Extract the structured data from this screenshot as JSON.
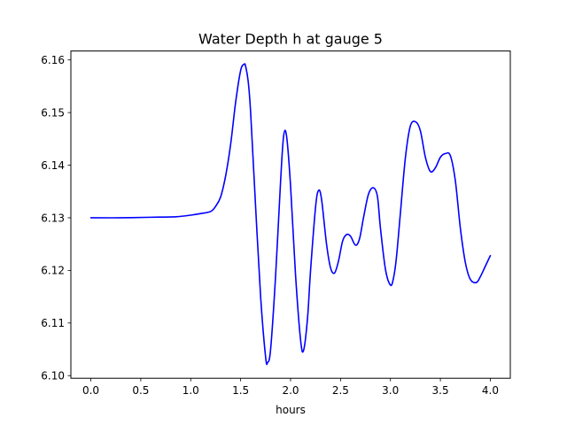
{
  "chart_data": {
    "type": "line",
    "title": "Water Depth h at gauge 5",
    "xlabel": "hours",
    "ylabel": "",
    "xlim": [
      -0.2,
      4.2
    ],
    "ylim": [
      6.0995,
      6.1617
    ],
    "xticks": [
      0.0,
      0.5,
      1.0,
      1.5,
      2.0,
      2.5,
      3.0,
      3.5,
      4.0
    ],
    "xtick_labels": [
      "0.0",
      "0.5",
      "1.0",
      "1.5",
      "2.0",
      "2.5",
      "3.0",
      "3.5",
      "4.0"
    ],
    "yticks": [
      6.1,
      6.11,
      6.12,
      6.13,
      6.14,
      6.15,
      6.16
    ],
    "ytick_labels": [
      "6.10",
      "6.11",
      "6.12",
      "6.13",
      "6.14",
      "6.15",
      "6.16"
    ],
    "grid": false,
    "series": [
      {
        "color": "#0000ff",
        "x": [
          0.0,
          0.3,
          0.6,
          0.85,
          1.0,
          1.1,
          1.2,
          1.25,
          1.3,
          1.35,
          1.4,
          1.45,
          1.5,
          1.535,
          1.55,
          1.575,
          1.6,
          1.65,
          1.7,
          1.75,
          1.77,
          1.8,
          1.85,
          1.9,
          1.93,
          1.96,
          2.0,
          2.05,
          2.1,
          2.13,
          2.17,
          2.2,
          2.25,
          2.28,
          2.31,
          2.36,
          2.4,
          2.44,
          2.48,
          2.52,
          2.56,
          2.6,
          2.65,
          2.69,
          2.73,
          2.78,
          2.83,
          2.87,
          2.9,
          2.95,
          3.0,
          3.03,
          3.06,
          3.1,
          3.15,
          3.2,
          3.255,
          3.3,
          3.35,
          3.4,
          3.45,
          3.5,
          3.55,
          3.6,
          3.65,
          3.7,
          3.75,
          3.8,
          3.86,
          3.9,
          3.95,
          4.0
        ],
        "y": [
          6.13,
          6.13,
          6.1301,
          6.1302,
          6.1305,
          6.1308,
          6.1312,
          6.1322,
          6.134,
          6.138,
          6.144,
          6.152,
          6.158,
          6.1592,
          6.1588,
          6.156,
          6.15,
          6.132,
          6.115,
          6.1035,
          6.1025,
          6.105,
          6.119,
          6.137,
          6.1455,
          6.1455,
          6.136,
          6.119,
          6.1068,
          6.1048,
          6.111,
          6.12,
          6.132,
          6.1352,
          6.1335,
          6.125,
          6.1205,
          6.1195,
          6.1218,
          6.1255,
          6.1268,
          6.1265,
          6.1248,
          6.126,
          6.13,
          6.1345,
          6.1357,
          6.134,
          6.128,
          6.1202,
          6.1172,
          6.1185,
          6.1225,
          6.131,
          6.1415,
          6.1475,
          6.1482,
          6.1465,
          6.1415,
          6.1388,
          6.1395,
          6.1415,
          6.1422,
          6.1418,
          6.137,
          6.128,
          6.1215,
          6.1183,
          6.1177,
          6.1188,
          6.1208,
          6.1228
        ]
      }
    ]
  }
}
